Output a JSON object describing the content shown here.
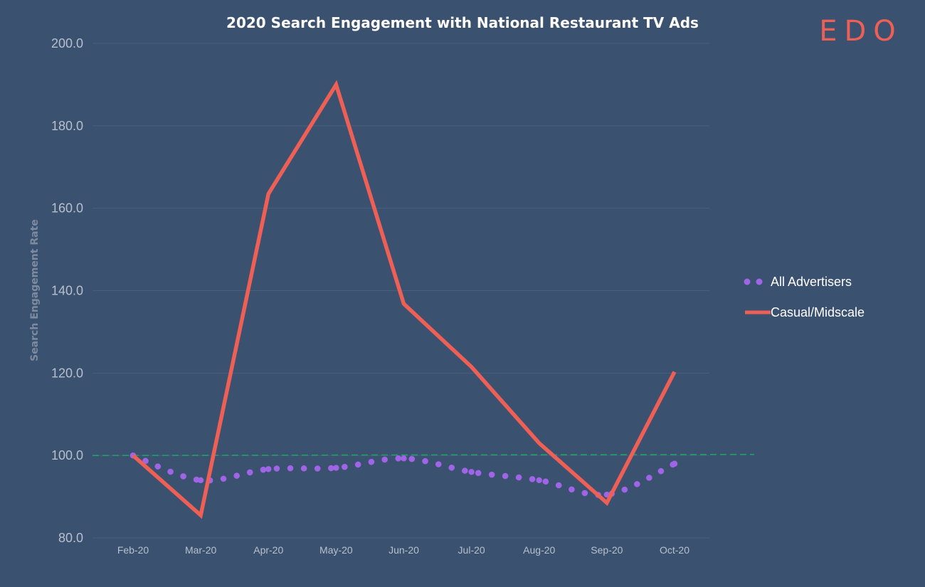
{
  "brand": {
    "logo_text": "EDO",
    "logo_color": "#ee5f55"
  },
  "colors": {
    "background": "#3b5170",
    "casual_line": "#ee5f55",
    "all_dots": "#a064e6",
    "baseline": "#1fa363",
    "grid": "#4a5f7d",
    "tick_text": "#b6c0cd"
  },
  "chart_data": {
    "type": "line",
    "title": "2020 Search Engagement with National Restaurant TV Ads",
    "xlabel": "",
    "ylabel": "Search Engagement Rate",
    "ylim": [
      80,
      200
    ],
    "y_ticks": [
      "80.0",
      "100.0",
      "120.0",
      "140.0",
      "160.0",
      "180.0",
      "200.0"
    ],
    "categories": [
      "Feb-20",
      "Mar-20",
      "Apr-20",
      "May-20",
      "Jun-20",
      "Jul-20",
      "Aug-20",
      "Sep-20",
      "Oct-20"
    ],
    "grid": true,
    "legend_position": "right",
    "reference_line": {
      "value": 100,
      "style": "dashed"
    },
    "series": [
      {
        "name": "All Advertisers",
        "style": "dotted",
        "color": "#a064e6",
        "values": [
          100.0,
          94.0,
          96.7,
          97.0,
          99.3,
          96.0,
          94.0,
          90.5,
          98.0
        ]
      },
      {
        "name": "Casual/Midscale",
        "style": "solid",
        "color": "#ee5f55",
        "values": [
          100.0,
          85.5,
          163.5,
          190.0,
          136.8,
          121.5,
          103.0,
          88.5,
          120.3
        ]
      }
    ]
  }
}
